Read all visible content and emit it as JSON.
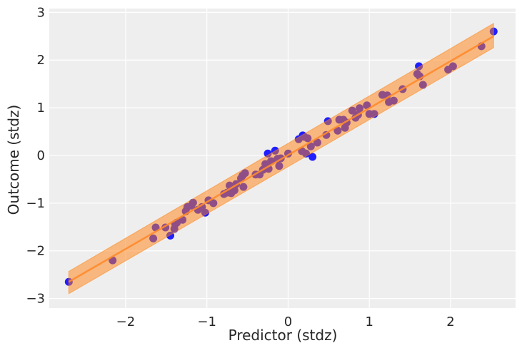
{
  "chart_data": {
    "type": "scatter",
    "title": "",
    "xlabel": "Predictor (stdz)",
    "ylabel": "Outcome (stdz)",
    "xlim": [
      -2.94,
      2.8
    ],
    "ylim": [
      -3.2,
      3.08
    ],
    "xticks": [
      -2,
      -1,
      0,
      1,
      2
    ],
    "yticks": [
      -3,
      -2,
      -1,
      0,
      1,
      2,
      3
    ],
    "xtick_labels": [
      "−2",
      "−1",
      "0",
      "1",
      "2"
    ],
    "ytick_labels": [
      "−3",
      "−2",
      "−1",
      "0",
      "1",
      "2",
      "3"
    ],
    "grid": true,
    "colors": {
      "background": "#eeeeee",
      "points": "#1f1fff",
      "band": "#ff7f0e",
      "line": "#ff8a2b"
    },
    "points": [
      [
        -2.7,
        -2.65
      ],
      [
        -2.16,
        -2.2
      ],
      [
        -1.66,
        -1.74
      ],
      [
        -1.63,
        -1.51
      ],
      [
        -1.51,
        -1.51
      ],
      [
        -1.45,
        -1.68
      ],
      [
        -1.4,
        -1.54
      ],
      [
        -1.39,
        -1.44
      ],
      [
        -1.37,
        -1.41
      ],
      [
        -1.3,
        -1.35
      ],
      [
        -1.26,
        -1.17
      ],
      [
        -1.24,
        -1.08
      ],
      [
        -1.19,
        -1.05
      ],
      [
        -1.17,
        -0.99
      ],
      [
        -1.11,
        -1.14
      ],
      [
        -1.06,
        -1.08
      ],
      [
        -1.02,
        -1.2
      ],
      [
        -0.98,
        -0.94
      ],
      [
        -0.92,
        -1.0
      ],
      [
        -0.79,
        -0.81
      ],
      [
        -0.75,
        -0.78
      ],
      [
        -0.72,
        -0.63
      ],
      [
        -0.7,
        -0.79
      ],
      [
        -0.66,
        -0.73
      ],
      [
        -0.64,
        -0.6
      ],
      [
        -0.58,
        -0.48
      ],
      [
        -0.56,
        -0.42
      ],
      [
        -0.53,
        -0.37
      ],
      [
        -0.55,
        -0.66
      ],
      [
        -0.4,
        -0.4
      ],
      [
        -0.35,
        -0.4
      ],
      [
        -0.31,
        -0.3
      ],
      [
        -0.28,
        -0.18
      ],
      [
        -0.25,
        0.04
      ],
      [
        -0.24,
        -0.28
      ],
      [
        -0.21,
        -0.12
      ],
      [
        -0.16,
        0.1
      ],
      [
        -0.13,
        -0.07
      ],
      [
        -0.11,
        -0.22
      ],
      [
        -0.09,
        -0.06
      ],
      [
        0.0,
        0.04
      ],
      [
        0.13,
        0.34
      ],
      [
        0.18,
        0.42
      ],
      [
        0.2,
        0.39
      ],
      [
        0.24,
        0.36
      ],
      [
        0.17,
        0.09
      ],
      [
        0.22,
        0.04
      ],
      [
        0.28,
        0.19
      ],
      [
        0.3,
        -0.03
      ],
      [
        0.36,
        0.27
      ],
      [
        0.47,
        0.43
      ],
      [
        0.49,
        0.72
      ],
      [
        0.61,
        0.52
      ],
      [
        0.63,
        0.75
      ],
      [
        0.68,
        0.75
      ],
      [
        0.7,
        0.58
      ],
      [
        0.72,
        0.69
      ],
      [
        0.79,
        0.94
      ],
      [
        0.83,
        0.79
      ],
      [
        0.86,
        0.85
      ],
      [
        0.88,
        0.99
      ],
      [
        0.97,
        1.05
      ],
      [
        1.0,
        0.87
      ],
      [
        1.06,
        0.87
      ],
      [
        1.16,
        1.27
      ],
      [
        1.22,
        1.26
      ],
      [
        1.24,
        1.12
      ],
      [
        1.3,
        1.15
      ],
      [
        1.41,
        1.39
      ],
      [
        1.59,
        1.71
      ],
      [
        1.61,
        1.87
      ],
      [
        1.62,
        1.66
      ],
      [
        1.66,
        1.48
      ],
      [
        1.97,
        1.8
      ],
      [
        2.03,
        1.87
      ],
      [
        2.38,
        2.29
      ],
      [
        2.53,
        2.6
      ]
    ],
    "fit_line": {
      "x": [
        -2.7,
        2.53
      ],
      "y": [
        -2.65,
        2.5
      ]
    },
    "band": {
      "x": [
        -2.7,
        2.53
      ],
      "upper": [
        -2.43,
        2.77
      ],
      "lower": [
        -2.9,
        2.26
      ]
    }
  }
}
